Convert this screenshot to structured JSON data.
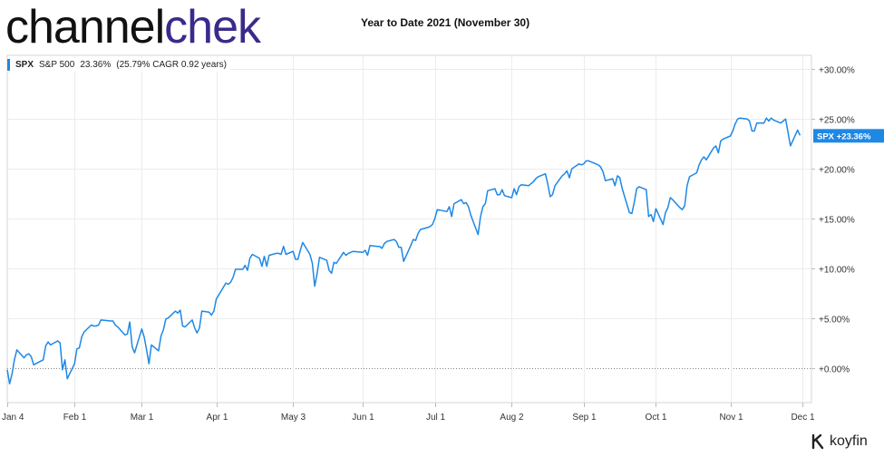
{
  "brand": {
    "part1": "channel",
    "part2": "chek"
  },
  "page_title": "Year to Date 2021 (November 30)",
  "legend": {
    "ticker": "SPX",
    "name": "S&P 500",
    "value": "23.36%",
    "cagr": "(25.79% CAGR 0.92 years)"
  },
  "footer_brand": "koyfin",
  "colors": {
    "line": "#1e88e5",
    "brand_dark": "#111111",
    "brand_purple": "#3b2a8a"
  },
  "chart_data": {
    "type": "line",
    "title": "Year to Date 2021 (November 30)",
    "xlabel": "",
    "ylabel": "",
    "x_tick_labels": [
      "Jan 4",
      "Feb 1",
      "Mar 1",
      "Apr 1",
      "May 3",
      "Jun 1",
      "Jul 1",
      "Aug 2",
      "Sep 1",
      "Oct 1",
      "Nov 1",
      "Dec 1"
    ],
    "y_tick_labels": [
      "+0.00%",
      "+5.00%",
      "+10.00%",
      "+15.00%",
      "+20.00%",
      "+25.00%",
      "+30.00%"
    ],
    "ylim": [
      -3.5,
      31.5
    ],
    "grid": true,
    "last_value_label": "SPX +23.36%",
    "series": [
      {
        "name": "SPX",
        "color": "#1e88e5",
        "points": [
          [
            "2021-01-04",
            -0.2
          ],
          [
            "2021-01-05",
            -1.6
          ],
          [
            "2021-01-06",
            -0.6
          ],
          [
            "2021-01-07",
            0.8
          ],
          [
            "2021-01-08",
            1.8
          ],
          [
            "2021-01-11",
            1.0
          ],
          [
            "2021-01-12",
            1.3
          ],
          [
            "2021-01-13",
            1.4
          ],
          [
            "2021-01-14",
            1.1
          ],
          [
            "2021-01-15",
            0.3
          ],
          [
            "2021-01-19",
            0.8
          ],
          [
            "2021-01-20",
            2.2
          ],
          [
            "2021-01-21",
            2.6
          ],
          [
            "2021-01-22",
            2.3
          ],
          [
            "2021-01-25",
            2.7
          ],
          [
            "2021-01-26",
            2.5
          ],
          [
            "2021-01-27",
            -0.2
          ],
          [
            "2021-01-28",
            0.8
          ],
          [
            "2021-01-29",
            -1.1
          ],
          [
            "2021-02-01",
            0.4
          ],
          [
            "2021-02-02",
            1.9
          ],
          [
            "2021-02-03",
            2.0
          ],
          [
            "2021-02-04",
            3.1
          ],
          [
            "2021-02-05",
            3.6
          ],
          [
            "2021-02-08",
            4.3
          ],
          [
            "2021-02-09",
            4.2
          ],
          [
            "2021-02-10",
            4.2
          ],
          [
            "2021-02-11",
            4.3
          ],
          [
            "2021-02-12",
            4.8
          ],
          [
            "2021-02-16",
            4.7
          ],
          [
            "2021-02-17",
            4.7
          ],
          [
            "2021-02-18",
            4.3
          ],
          [
            "2021-02-19",
            4.1
          ],
          [
            "2021-02-22",
            3.3
          ],
          [
            "2021-02-23",
            3.4
          ],
          [
            "2021-02-24",
            4.6
          ],
          [
            "2021-02-25",
            2.1
          ],
          [
            "2021-02-26",
            1.5
          ],
          [
            "2021-03-01",
            3.9
          ],
          [
            "2021-03-02",
            3.1
          ],
          [
            "2021-03-03",
            1.8
          ],
          [
            "2021-03-04",
            0.4
          ],
          [
            "2021-03-05",
            2.3
          ],
          [
            "2021-03-08",
            1.7
          ],
          [
            "2021-03-09",
            3.2
          ],
          [
            "2021-03-10",
            3.8
          ],
          [
            "2021-03-11",
            4.9
          ],
          [
            "2021-03-12",
            5.0
          ],
          [
            "2021-03-15",
            5.7
          ],
          [
            "2021-03-16",
            5.5
          ],
          [
            "2021-03-17",
            5.8
          ],
          [
            "2021-03-18",
            4.2
          ],
          [
            "2021-03-19",
            4.1
          ],
          [
            "2021-03-22",
            4.8
          ],
          [
            "2021-03-23",
            4.0
          ],
          [
            "2021-03-24",
            3.5
          ],
          [
            "2021-03-25",
            4.0
          ],
          [
            "2021-03-26",
            5.7
          ],
          [
            "2021-03-29",
            5.6
          ],
          [
            "2021-03-30",
            5.3
          ],
          [
            "2021-03-31",
            5.7
          ],
          [
            "2021-04-01",
            6.9
          ],
          [
            "2021-04-05",
            8.5
          ],
          [
            "2021-04-06",
            8.4
          ],
          [
            "2021-04-07",
            8.6
          ],
          [
            "2021-04-08",
            9.1
          ],
          [
            "2021-04-09",
            9.9
          ],
          [
            "2021-04-12",
            9.9
          ],
          [
            "2021-04-13",
            10.3
          ],
          [
            "2021-04-14",
            9.8
          ],
          [
            "2021-04-15",
            11.0
          ],
          [
            "2021-04-16",
            11.4
          ],
          [
            "2021-04-19",
            11.0
          ],
          [
            "2021-04-20",
            10.2
          ],
          [
            "2021-04-21",
            11.2
          ],
          [
            "2021-04-22",
            10.2
          ],
          [
            "2021-04-23",
            11.3
          ],
          [
            "2021-04-26",
            11.5
          ],
          [
            "2021-04-27",
            11.5
          ],
          [
            "2021-04-28",
            11.4
          ],
          [
            "2021-04-29",
            12.2
          ],
          [
            "2021-04-30",
            11.4
          ],
          [
            "2021-05-03",
            11.7
          ],
          [
            "2021-05-04",
            10.9
          ],
          [
            "2021-05-05",
            10.9
          ],
          [
            "2021-05-06",
            11.8
          ],
          [
            "2021-05-07",
            12.6
          ],
          [
            "2021-05-10",
            11.4
          ],
          [
            "2021-05-11",
            10.5
          ],
          [
            "2021-05-12",
            8.2
          ],
          [
            "2021-05-13",
            9.5
          ],
          [
            "2021-05-14",
            11.1
          ],
          [
            "2021-05-17",
            10.8
          ],
          [
            "2021-05-18",
            9.8
          ],
          [
            "2021-05-19",
            9.5
          ],
          [
            "2021-05-20",
            10.6
          ],
          [
            "2021-05-21",
            10.5
          ],
          [
            "2021-05-24",
            11.6
          ],
          [
            "2021-05-25",
            11.3
          ],
          [
            "2021-05-26",
            11.5
          ],
          [
            "2021-05-27",
            11.6
          ],
          [
            "2021-05-28",
            11.7
          ],
          [
            "2021-06-01",
            11.6
          ],
          [
            "2021-06-02",
            11.8
          ],
          [
            "2021-06-03",
            11.3
          ],
          [
            "2021-06-04",
            12.3
          ],
          [
            "2021-06-07",
            12.2
          ],
          [
            "2021-06-08",
            12.2
          ],
          [
            "2021-06-09",
            12.0
          ],
          [
            "2021-06-10",
            12.5
          ],
          [
            "2021-06-11",
            12.7
          ],
          [
            "2021-06-14",
            12.9
          ],
          [
            "2021-06-15",
            12.7
          ],
          [
            "2021-06-16",
            12.1
          ],
          [
            "2021-06-17",
            12.1
          ],
          [
            "2021-06-18",
            10.7
          ],
          [
            "2021-06-21",
            12.3
          ],
          [
            "2021-06-22",
            12.9
          ],
          [
            "2021-06-23",
            12.8
          ],
          [
            "2021-06-24",
            13.5
          ],
          [
            "2021-06-25",
            13.9
          ],
          [
            "2021-06-28",
            14.1
          ],
          [
            "2021-06-29",
            14.2
          ],
          [
            "2021-06-30",
            14.4
          ],
          [
            "2021-07-01",
            15.0
          ],
          [
            "2021-07-02",
            15.9
          ],
          [
            "2021-07-06",
            15.7
          ],
          [
            "2021-07-07",
            16.2
          ],
          [
            "2021-07-08",
            15.2
          ],
          [
            "2021-07-09",
            16.5
          ],
          [
            "2021-07-12",
            16.9
          ],
          [
            "2021-07-13",
            16.5
          ],
          [
            "2021-07-14",
            16.6
          ],
          [
            "2021-07-15",
            16.2
          ],
          [
            "2021-07-16",
            15.3
          ],
          [
            "2021-07-19",
            13.4
          ],
          [
            "2021-07-20",
            15.2
          ],
          [
            "2021-07-21",
            16.2
          ],
          [
            "2021-07-22",
            16.5
          ],
          [
            "2021-07-23",
            17.8
          ],
          [
            "2021-07-26",
            18.0
          ],
          [
            "2021-07-27",
            17.4
          ],
          [
            "2021-07-28",
            17.4
          ],
          [
            "2021-07-29",
            17.9
          ],
          [
            "2021-07-30",
            17.3
          ],
          [
            "2021-08-02",
            17.1
          ],
          [
            "2021-08-03",
            18.0
          ],
          [
            "2021-08-04",
            17.4
          ],
          [
            "2021-08-05",
            18.2
          ],
          [
            "2021-08-06",
            18.4
          ],
          [
            "2021-08-09",
            18.3
          ],
          [
            "2021-08-10",
            18.5
          ],
          [
            "2021-08-11",
            18.7
          ],
          [
            "2021-08-12",
            19.0
          ],
          [
            "2021-08-13",
            19.2
          ],
          [
            "2021-08-16",
            19.5
          ],
          [
            "2021-08-17",
            18.5
          ],
          [
            "2021-08-18",
            17.2
          ],
          [
            "2021-08-19",
            17.4
          ],
          [
            "2021-08-20",
            18.3
          ],
          [
            "2021-08-23",
            19.3
          ],
          [
            "2021-08-24",
            19.5
          ],
          [
            "2021-08-25",
            19.8
          ],
          [
            "2021-08-26",
            19.1
          ],
          [
            "2021-08-27",
            20.0
          ],
          [
            "2021-08-30",
            20.5
          ],
          [
            "2021-08-31",
            20.4
          ],
          [
            "2021-09-01",
            20.5
          ],
          [
            "2021-09-02",
            20.8
          ],
          [
            "2021-09-03",
            20.8
          ],
          [
            "2021-09-07",
            20.4
          ],
          [
            "2021-09-08",
            20.2
          ],
          [
            "2021-09-09",
            19.7
          ],
          [
            "2021-09-10",
            18.8
          ],
          [
            "2021-09-13",
            19.0
          ],
          [
            "2021-09-14",
            18.3
          ],
          [
            "2021-09-15",
            19.3
          ],
          [
            "2021-09-16",
            19.1
          ],
          [
            "2021-09-17",
            18.0
          ],
          [
            "2021-09-20",
            15.6
          ],
          [
            "2021-09-21",
            15.5
          ],
          [
            "2021-09-22",
            16.6
          ],
          [
            "2021-09-23",
            18.0
          ],
          [
            "2021-09-24",
            18.2
          ],
          [
            "2021-09-27",
            17.9
          ],
          [
            "2021-09-28",
            15.2
          ],
          [
            "2021-09-29",
            15.4
          ],
          [
            "2021-09-30",
            14.7
          ],
          [
            "2021-10-01",
            16.0
          ],
          [
            "2021-10-04",
            14.4
          ],
          [
            "2021-10-05",
            15.6
          ],
          [
            "2021-10-06",
            16.1
          ],
          [
            "2021-10-07",
            17.1
          ],
          [
            "2021-10-08",
            16.9
          ],
          [
            "2021-10-11",
            16.1
          ],
          [
            "2021-10-12",
            15.9
          ],
          [
            "2021-10-13",
            16.3
          ],
          [
            "2021-10-14",
            18.3
          ],
          [
            "2021-10-15",
            19.2
          ],
          [
            "2021-10-18",
            19.6
          ],
          [
            "2021-10-19",
            20.4
          ],
          [
            "2021-10-20",
            20.9
          ],
          [
            "2021-10-21",
            21.2
          ],
          [
            "2021-10-22",
            20.9
          ],
          [
            "2021-10-25",
            22.1
          ],
          [
            "2021-10-26",
            22.3
          ],
          [
            "2021-10-27",
            21.6
          ],
          [
            "2021-10-28",
            22.8
          ],
          [
            "2021-10-29",
            23.0
          ],
          [
            "2021-11-01",
            23.3
          ],
          [
            "2021-11-02",
            23.8
          ],
          [
            "2021-11-03",
            24.5
          ],
          [
            "2021-11-04",
            25.0
          ],
          [
            "2021-11-05",
            25.1
          ],
          [
            "2021-11-08",
            25.0
          ],
          [
            "2021-11-09",
            24.8
          ],
          [
            "2021-11-10",
            23.8
          ],
          [
            "2021-11-11",
            23.8
          ],
          [
            "2021-11-12",
            24.6
          ],
          [
            "2021-11-15",
            24.6
          ],
          [
            "2021-11-16",
            25.1
          ],
          [
            "2021-11-17",
            24.8
          ],
          [
            "2021-11-18",
            25.1
          ],
          [
            "2021-11-19",
            24.9
          ],
          [
            "2021-11-22",
            24.6
          ],
          [
            "2021-11-23",
            24.8
          ],
          [
            "2021-11-24",
            25.0
          ],
          [
            "2021-11-26",
            22.3
          ],
          [
            "2021-11-29",
            23.9
          ],
          [
            "2021-11-30",
            23.36
          ]
        ]
      }
    ]
  }
}
